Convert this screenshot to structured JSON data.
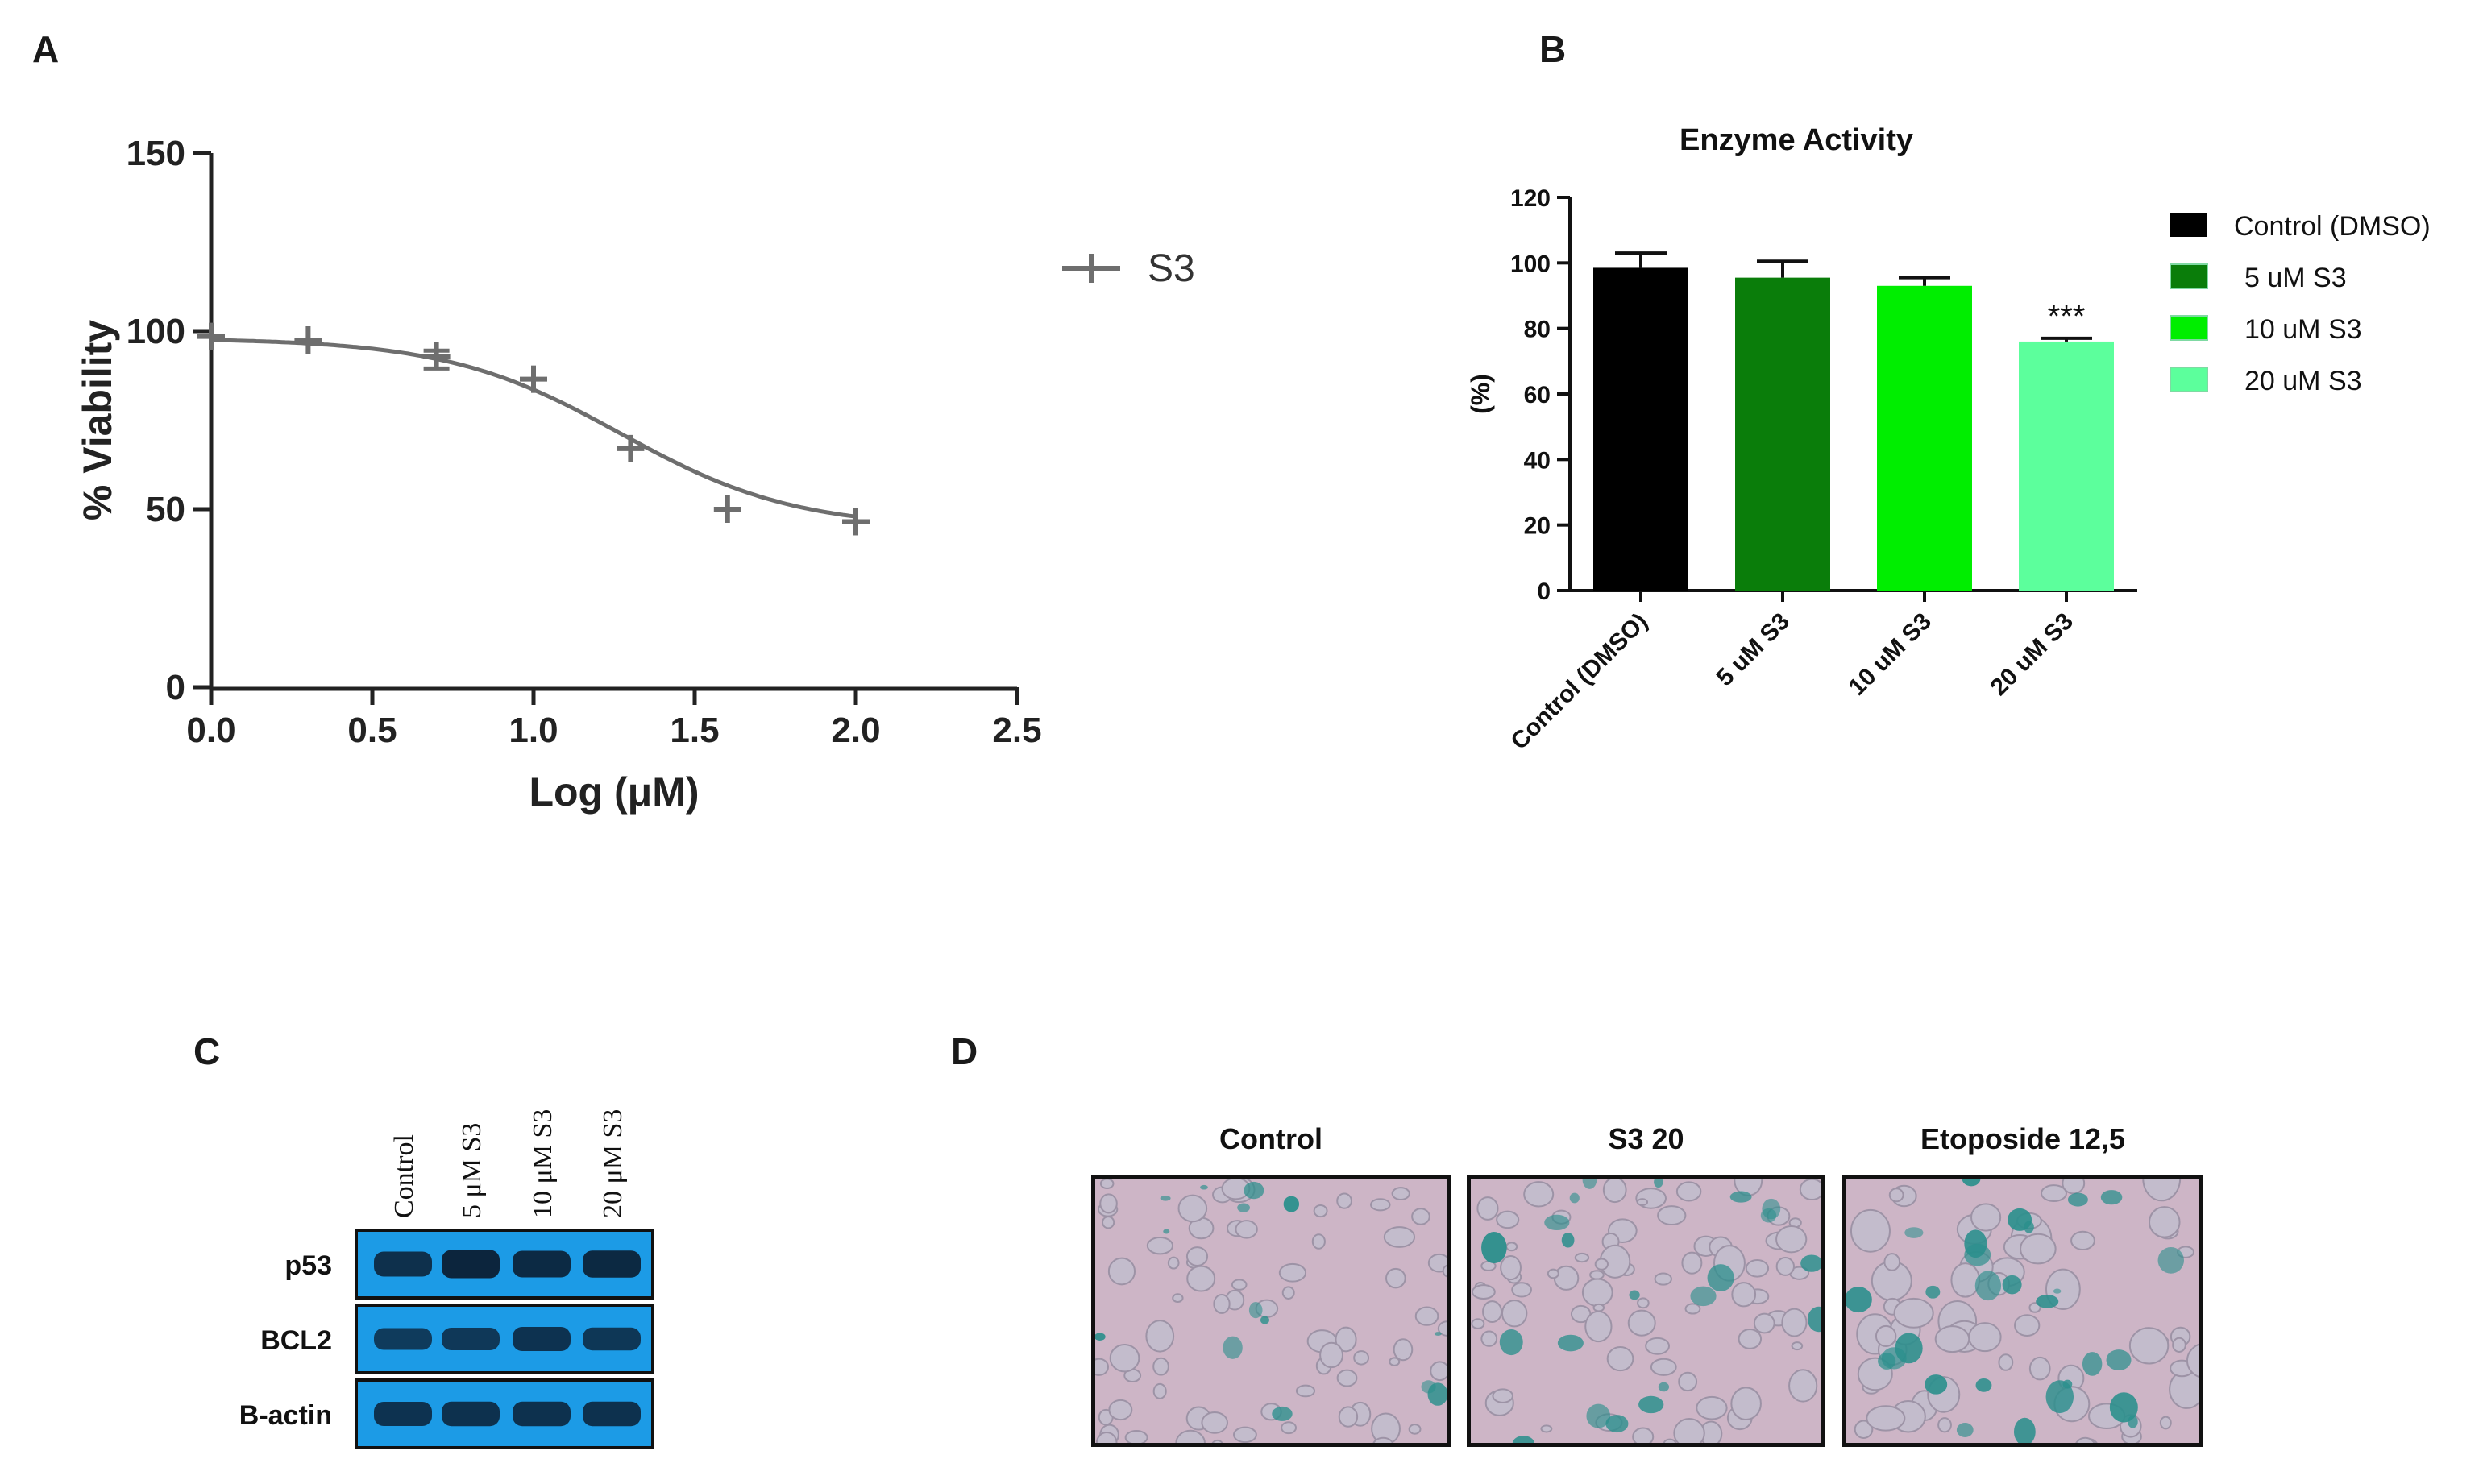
{
  "panels": {
    "a": {
      "letter": "A"
    },
    "b": {
      "letter": "B"
    },
    "c": {
      "letter": "C"
    },
    "d": {
      "letter": "D"
    }
  },
  "chart_data": [
    {
      "type": "line",
      "panel": "A",
      "xlabel": "Log (μM)",
      "ylabel": "% Viability",
      "xlim": [
        0.0,
        2.5
      ],
      "ylim": [
        0,
        150
      ],
      "xticks": [
        "0.0",
        "0.5",
        "1.0",
        "1.5",
        "2.0",
        "2.5"
      ],
      "xtick_values": [
        0.0,
        0.5,
        1.0,
        1.5,
        2.0,
        2.5
      ],
      "yticks": [
        "0",
        "50",
        "100",
        "150"
      ],
      "ytick_values": [
        0,
        50,
        100,
        150
      ],
      "legend_position": "right",
      "series": [
        {
          "name": "S3",
          "color": "#6e6e6e",
          "marker": "plus",
          "points": [
            {
              "x": 0.0,
              "y": 98.5
            },
            {
              "x": 0.301,
              "y": 97.5
            },
            {
              "x": 0.699,
              "y": 93.0
            },
            {
              "x": 1.0,
              "y": 86.5
            },
            {
              "x": 1.301,
              "y": 67.0
            },
            {
              "x": 1.602,
              "y": 50.0
            },
            {
              "x": 2.0,
              "y": 46.5
            }
          ],
          "error_bars": [
            {
              "x": 0.699,
              "low": 89.5,
              "high": 94.5
            }
          ],
          "fit_curve": {
            "bottom": 44.5,
            "top": 98.0,
            "log_ic50": 1.27,
            "hill_slope": -1.6
          }
        }
      ]
    },
    {
      "type": "bar",
      "panel": "B",
      "title": "Enzyme Activity",
      "xlabel": "",
      "ylabel": "(%)",
      "ylim": [
        0,
        120
      ],
      "yticks": [
        "0",
        "20",
        "40",
        "60",
        "80",
        "100",
        "120"
      ],
      "ytick_values": [
        0,
        20,
        40,
        60,
        80,
        100,
        120
      ],
      "categories": [
        "Control (DMSO)",
        "5 uM S3",
        "10 uM S3",
        "20 uM S3"
      ],
      "values": [
        98.5,
        95.5,
        93.0,
        76.0
      ],
      "errors": [
        4.5,
        5.0,
        2.5,
        1.0
      ],
      "colors": [
        "#000000",
        "#0a7d0a",
        "#00ee00",
        "#5cff9c"
      ],
      "annotations": [
        {
          "category": "20 uM S3",
          "text": "***"
        }
      ],
      "legend_position": "right",
      "legend": [
        "Control (DMSO)",
        "5 uM S3",
        "10 uM S3",
        "20 uM S3"
      ]
    }
  ],
  "western_blot": {
    "lanes": [
      "Control",
      "5 μM S3",
      "10 μM S3",
      "20 μM S3"
    ],
    "rows": [
      {
        "label": "p53",
        "intensity": [
          0.75,
          0.95,
          0.85,
          0.88
        ]
      },
      {
        "label": "BCL2",
        "intensity": [
          0.55,
          0.6,
          0.7,
          0.62
        ]
      },
      {
        "label": "B-actin",
        "intensity": [
          0.7,
          0.72,
          0.72,
          0.72
        ]
      }
    ],
    "colors": {
      "membrane": "#1c9be6",
      "band": "#0c2238"
    }
  },
  "micrographs": [
    {
      "label": "Control"
    },
    {
      "label": "S3  20"
    },
    {
      "label": "Etoposide  12,5"
    }
  ],
  "colors": {
    "stain": "#2a8f8c",
    "background": "#cdb5c6"
  }
}
